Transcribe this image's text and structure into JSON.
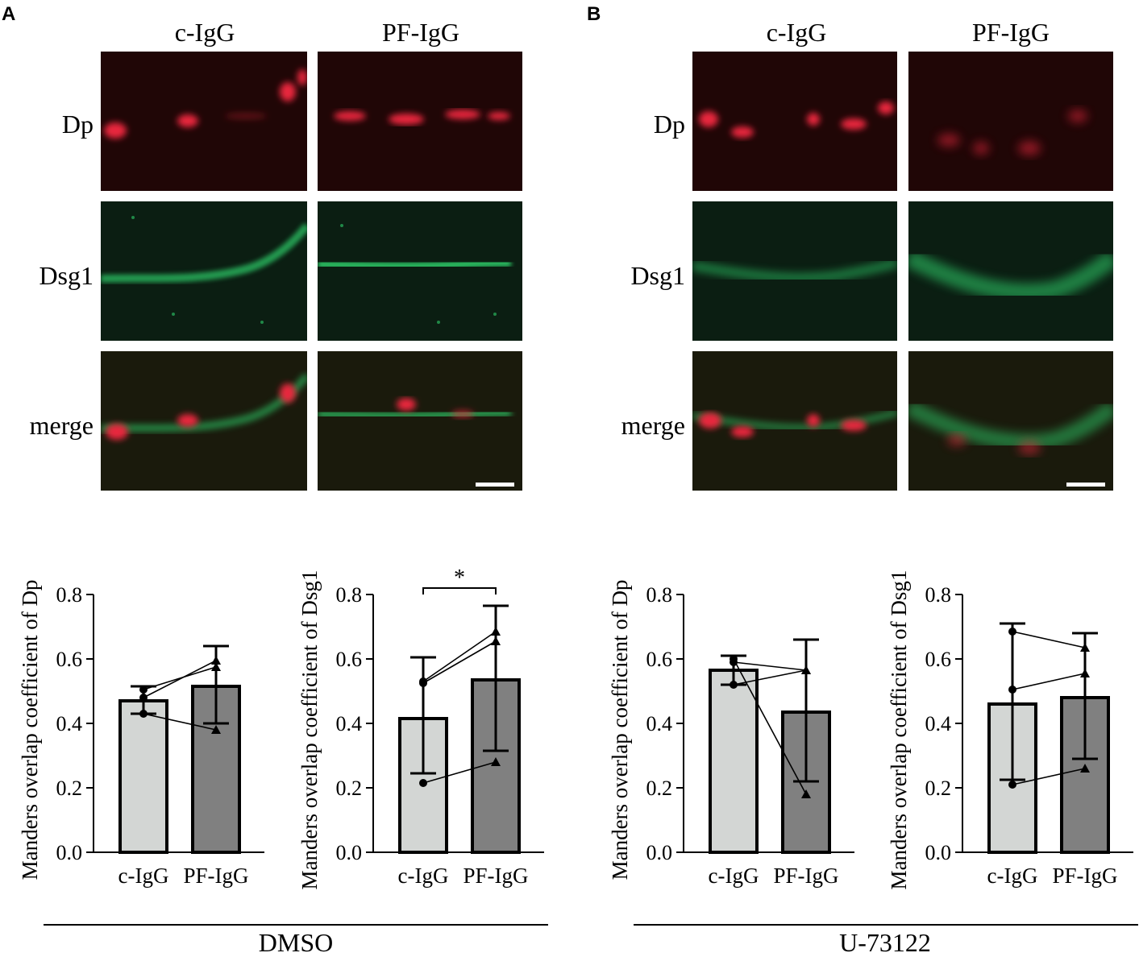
{
  "panels": [
    {
      "letter": "A",
      "columns": [
        "c-IgG",
        "PF-IgG"
      ],
      "rows": [
        "Dp",
        "Dsg1",
        "merge"
      ],
      "treatment": "DMSO"
    },
    {
      "letter": "B",
      "columns": [
        "c-IgG",
        "PF-IgG"
      ],
      "rows": [
        "Dp",
        "Dsg1",
        "merge"
      ],
      "treatment": "U-73122"
    }
  ],
  "colors": {
    "dp_red": "#e8283c",
    "dsg1_green": "#2fcf6a",
    "bar_control": "#d3d6d4",
    "bar_pf": "#808080"
  },
  "chart_data": [
    {
      "type": "bar",
      "panel": "A",
      "ylabel": "Manders overlap coefficient of Dp",
      "categories": [
        "c-IgG",
        "PF-IgG"
      ],
      "values": [
        0.47,
        0.515
      ],
      "errors": [
        [
          0.43,
          0.515
        ],
        [
          0.4,
          0.64
        ]
      ],
      "ylim": [
        0,
        0.8
      ],
      "yticks": [
        "0.0",
        "0.2",
        "0.4",
        "0.6",
        "0.8"
      ],
      "paired": [
        [
          0.43,
          0.38
        ],
        [
          0.505,
          0.575
        ],
        [
          0.48,
          0.595
        ]
      ],
      "significance": ""
    },
    {
      "type": "bar",
      "panel": "A",
      "ylabel": "Manders overlap coefficient of Dsg1",
      "categories": [
        "c-IgG",
        "PF-IgG"
      ],
      "values": [
        0.415,
        0.535
      ],
      "errors": [
        [
          0.245,
          0.605
        ],
        [
          0.315,
          0.765
        ]
      ],
      "ylim": [
        0,
        0.8
      ],
      "yticks": [
        "0.0",
        "0.2",
        "0.4",
        "0.6",
        "0.8"
      ],
      "paired": [
        [
          0.215,
          0.28
        ],
        [
          0.53,
          0.685
        ],
        [
          0.525,
          0.655
        ]
      ],
      "significance": "*"
    },
    {
      "type": "bar",
      "panel": "B",
      "ylabel": "Manders overlap coefficient of Dp",
      "categories": [
        "c-IgG",
        "PF-IgG"
      ],
      "values": [
        0.565,
        0.435
      ],
      "errors": [
        [
          0.52,
          0.61
        ],
        [
          0.22,
          0.66
        ]
      ],
      "ylim": [
        0,
        0.8
      ],
      "yticks": [
        "0.0",
        "0.2",
        "0.4",
        "0.6",
        "0.8"
      ],
      "paired": [
        [
          0.6,
          0.18
        ],
        [
          0.52,
          0.565
        ],
        [
          0.59,
          0.565
        ]
      ],
      "significance": ""
    },
    {
      "type": "bar",
      "panel": "B",
      "ylabel": "Manders overlap coefficient of Dsg1",
      "categories": [
        "c-IgG",
        "PF-IgG"
      ],
      "values": [
        0.46,
        0.48
      ],
      "errors": [
        [
          0.225,
          0.71
        ],
        [
          0.29,
          0.68
        ]
      ],
      "ylim": [
        0,
        0.8
      ],
      "yticks": [
        "0.0",
        "0.2",
        "0.4",
        "0.6",
        "0.8"
      ],
      "paired": [
        [
          0.685,
          0.635
        ],
        [
          0.505,
          0.555
        ],
        [
          0.21,
          0.26
        ]
      ],
      "significance": ""
    }
  ]
}
